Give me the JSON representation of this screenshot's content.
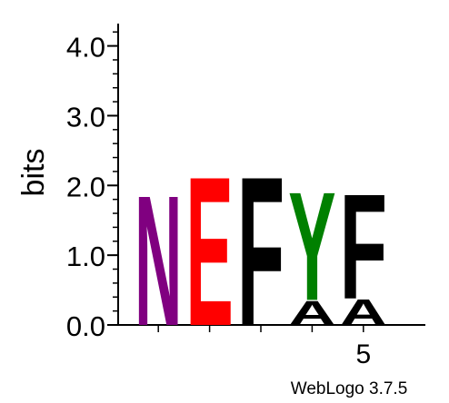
{
  "chart_data": {
    "type": "sequence-logo",
    "ylabel": "bits",
    "ylim": [
      0,
      4.32
    ],
    "y_ticks": [
      "0.0",
      "1.0",
      "2.0",
      "3.0",
      "4.0"
    ],
    "y_tick_values": [
      0,
      1,
      2,
      3,
      4
    ],
    "x_tick_labels": [
      {
        "position": 5,
        "label": "5"
      }
    ],
    "positions": [
      {
        "position": 1,
        "letters": [
          {
            "letter": "N",
            "bits": 1.92,
            "color": "#800080"
          }
        ]
      },
      {
        "position": 2,
        "letters": [
          {
            "letter": "E",
            "bits": 2.2,
            "color": "#ff0000"
          }
        ]
      },
      {
        "position": 3,
        "letters": [
          {
            "letter": "F",
            "bits": 2.2,
            "color": "#000000"
          }
        ]
      },
      {
        "position": 4,
        "letters": [
          {
            "letter": "A",
            "bits": 0.36,
            "color": "#000000"
          },
          {
            "letter": "Y",
            "bits": 1.6,
            "color": "#008000"
          }
        ]
      },
      {
        "position": 5,
        "letters": [
          {
            "letter": "A",
            "bits": 0.38,
            "color": "#000000"
          },
          {
            "letter": "F",
            "bits": 1.55,
            "color": "#000000"
          }
        ]
      }
    ]
  },
  "footer": {
    "credit": "WebLogo 3.7.5"
  }
}
